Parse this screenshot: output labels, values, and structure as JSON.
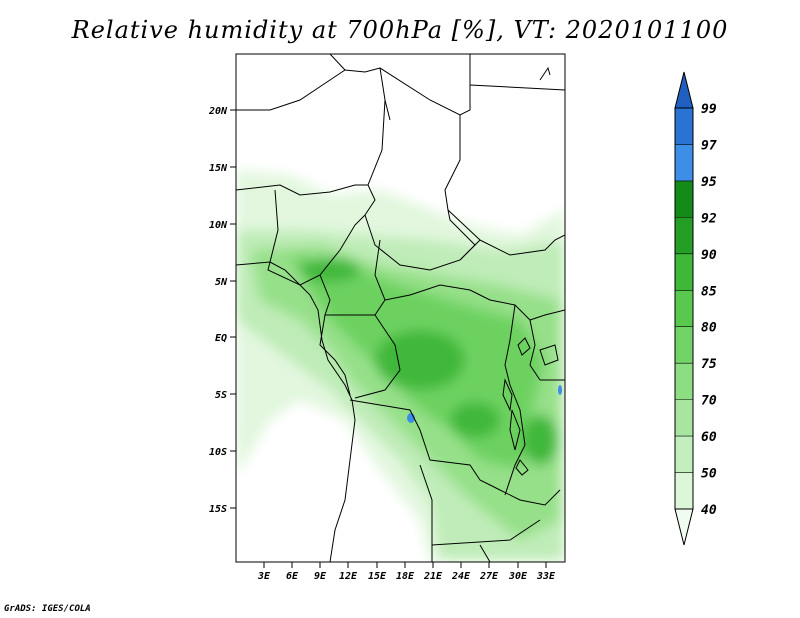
{
  "title": "Relative humidity at 700hPa [%], VT: 2020101100",
  "credit": "GrADS: IGES/COLA",
  "axes": {
    "lat_labels": [
      "20N",
      "15N",
      "10N",
      "5N",
      "EQ",
      "5S",
      "10S",
      "15S"
    ],
    "lon_labels": [
      "3E",
      "6E",
      "9E",
      "12E",
      "15E",
      "18E",
      "21E",
      "24E",
      "27E",
      "30E",
      "33E"
    ]
  },
  "colorbar": {
    "levels": [
      "40",
      "50",
      "60",
      "70",
      "75",
      "80",
      "85",
      "90",
      "92",
      "95",
      "97",
      "99"
    ],
    "colors": [
      "#f0fcef",
      "#dcf6d8",
      "#c3eebd",
      "#a8e6a0",
      "#8ddd82",
      "#72d466",
      "#58c94e",
      "#3fb83a",
      "#259e26",
      "#148a18",
      "#3c8ee6",
      "#2a72d4",
      "#1f5fc0"
    ]
  },
  "map": {
    "region": "Central Africa",
    "lon_range": [
      0,
      35
    ],
    "lat_range": [
      -20,
      25
    ],
    "field": "Relative humidity at 700hPa",
    "units": "%"
  }
}
